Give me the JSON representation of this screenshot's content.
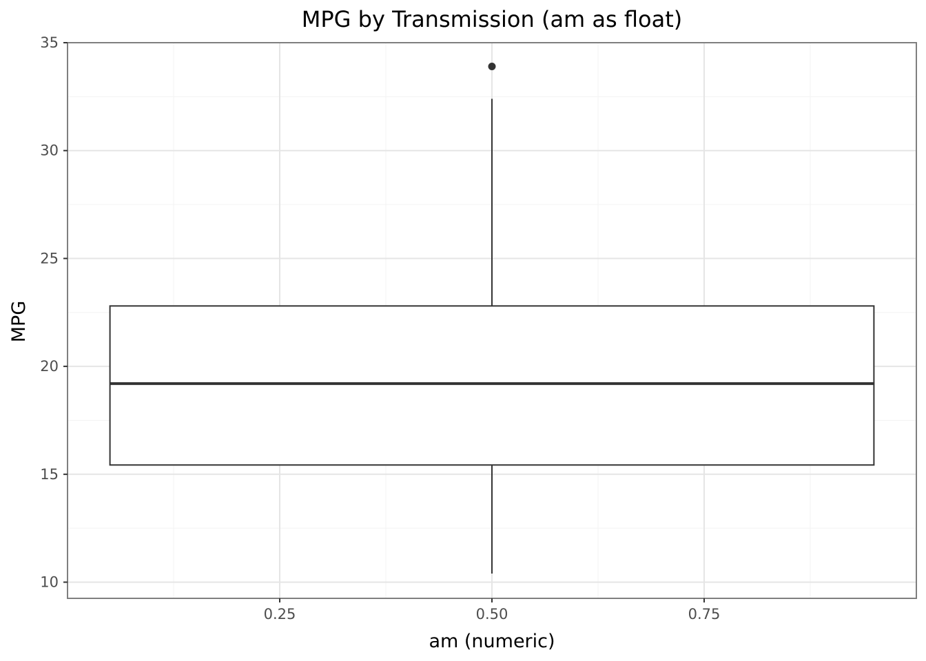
{
  "chart_data": {
    "type": "box",
    "title": "MPG by Transmission (am as float)",
    "xlabel": "am (numeric)",
    "ylabel": "MPG",
    "xlim": [
      0.0,
      1.0
    ],
    "ylim": [
      9.25,
      35.0
    ],
    "x_ticks": [
      {
        "value": 0.25,
        "label": "0.25"
      },
      {
        "value": 0.5,
        "label": "0.50"
      },
      {
        "value": 0.75,
        "label": "0.75"
      }
    ],
    "y_ticks": [
      {
        "value": 10,
        "label": "10"
      },
      {
        "value": 15,
        "label": "15"
      },
      {
        "value": 20,
        "label": "20"
      },
      {
        "value": 25,
        "label": "25"
      },
      {
        "value": 30,
        "label": "30"
      },
      {
        "value": 35,
        "label": "35"
      }
    ],
    "grid": true,
    "box": {
      "x_center": 0.5,
      "x_range": [
        0.05,
        0.95
      ],
      "q1": 15.43,
      "median": 19.2,
      "q3": 22.8,
      "whisker_low": 10.4,
      "whisker_high": 32.4
    },
    "outliers": [
      {
        "x": 0.5,
        "y": 33.9
      }
    ],
    "colors": {
      "panel_border": "#7f7f7f",
      "grid_major": "#e5e5e5",
      "grid_minor": "#f3f3f3",
      "box_line": "#333333",
      "outlier": "#333333",
      "tick_label": "#4d4d4d"
    }
  }
}
